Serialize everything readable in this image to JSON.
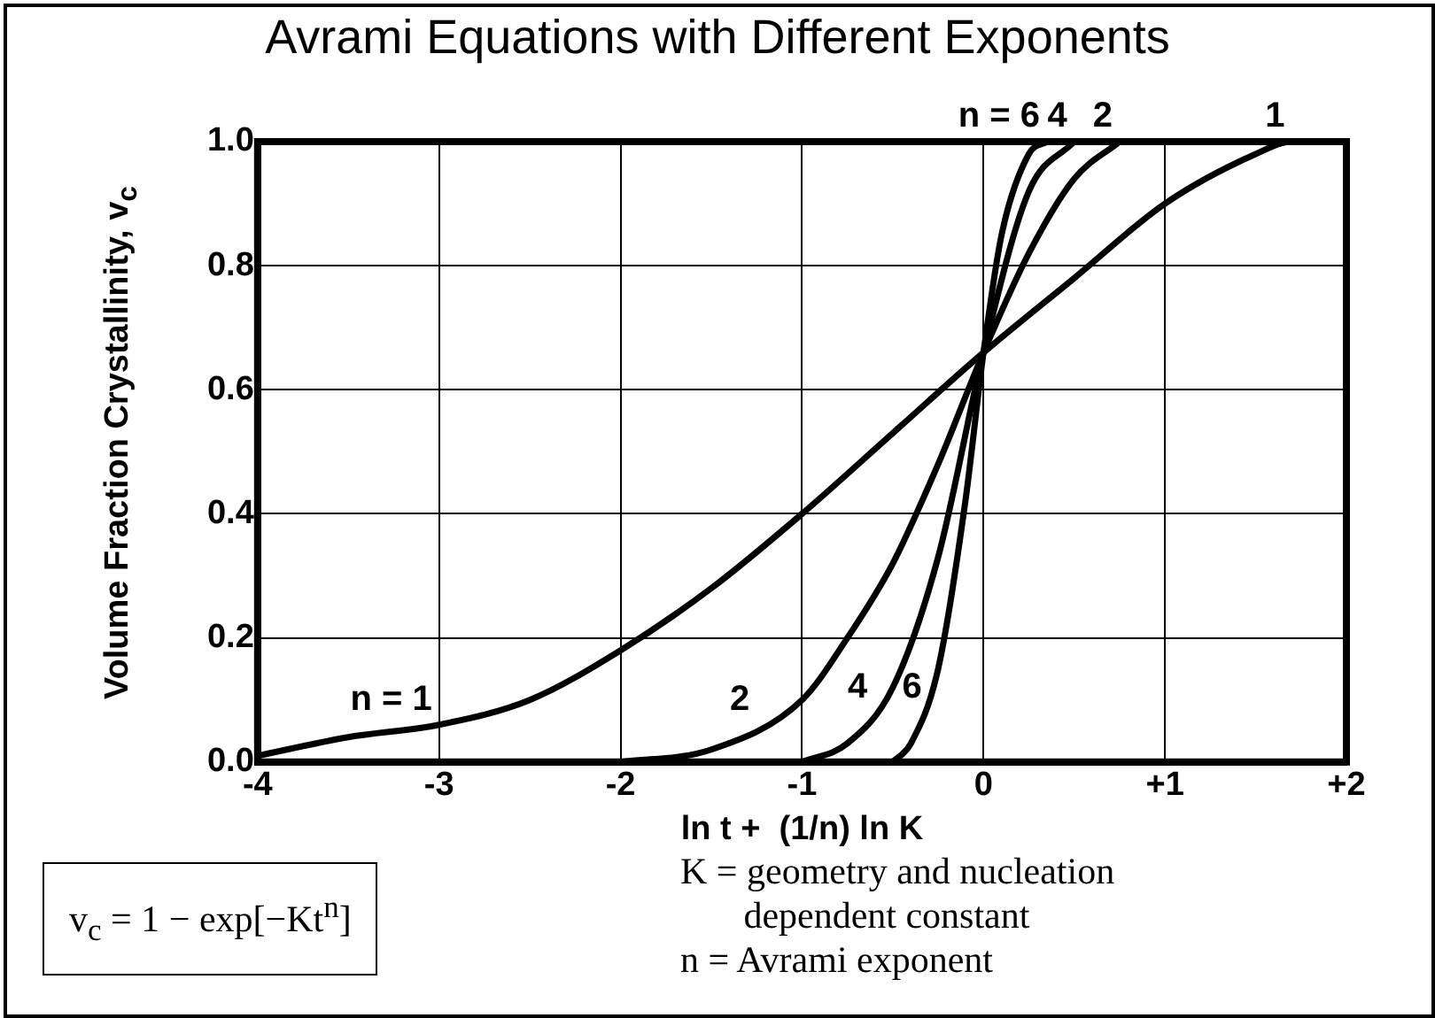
{
  "chart_data": {
    "type": "line",
    "title": "Avrami Equations with Different Exponents",
    "xlabel": "ln t +  (1/n) ln K",
    "ylabel": "Volume Fraction Crystallinity, v$_{c}$",
    "xlim": [
      -4,
      2
    ],
    "xticks": [
      -4,
      -3,
      -2,
      -1,
      0,
      {
        "value": 1,
        "label": "+1"
      },
      {
        "value": 2,
        "label": "+2"
      }
    ],
    "ylim": [
      0,
      1
    ],
    "yticks": [
      {
        "value": 0,
        "label": "0.0"
      },
      0.2,
      0.4,
      0.6,
      0.8,
      {
        "value": 1,
        "label": "1.0"
      }
    ],
    "grid": true,
    "legend": false,
    "marker": "none",
    "line_style": "solid",
    "series": [
      {
        "type": "line",
        "color": "#000000",
        "x": [
          -4,
          -3.5,
          -3,
          -2.5,
          -2,
          -1.5,
          -1,
          -0.5,
          0,
          0.5,
          1,
          1.5,
          1.7,
          1.8
        ],
        "values": [
          0.01,
          0.04,
          0.06,
          0.1,
          0.18,
          0.28,
          0.4,
          0.53,
          0.66,
          0.78,
          0.9,
          0.98,
          1.0,
          1.0
        ]
      },
      {
        "type": "line",
        "color": "#000000",
        "x": [
          -2,
          -1.5,
          -1,
          -0.75,
          -0.5,
          -0.25,
          0,
          0.25,
          0.5,
          0.75
        ],
        "values": [
          0,
          0.02,
          0.1,
          0.2,
          0.32,
          0.48,
          0.66,
          0.82,
          0.94,
          1.0
        ]
      },
      {
        "type": "line",
        "color": "#000000",
        "x": [
          -1,
          -0.75,
          -0.5,
          -0.25,
          0,
          0.25,
          0.5
        ],
        "values": [
          0,
          0.03,
          0.12,
          0.33,
          0.66,
          0.92,
          1.0
        ]
      },
      {
        "type": "line",
        "color": "#000000",
        "x": [
          -0.5,
          -0.4,
          -0.25,
          -0.1,
          0,
          0.1,
          0.25,
          0.35
        ],
        "values": [
          0,
          0.03,
          0.15,
          0.42,
          0.66,
          0.85,
          0.98,
          1.0
        ]
      }
    ],
    "annotations": [
      {
        "text": "n = 1",
        "x": -3,
        "y": 0.06
      },
      {
        "text": "2",
        "x": -1.25,
        "y": 0.06
      },
      {
        "text": "4",
        "x": -0.6,
        "y": 0.08
      },
      {
        "text": "6",
        "x": -0.3,
        "y": 0.08
      },
      {
        "text": "n = 6",
        "x": 0.35,
        "y": 1
      },
      {
        "text": "4",
        "x": 0.5,
        "y": 1
      },
      {
        "text": "2",
        "x": 0.75,
        "y": 1
      },
      {
        "text": "1",
        "x": 1.7,
        "y": 1
      },
      "v$_{c}$ = 1 − exp[−Kt$^{n}$]",
      "K = geometry and nucleation dependent constant",
      "n = Avrami exponent"
    ]
  }
}
